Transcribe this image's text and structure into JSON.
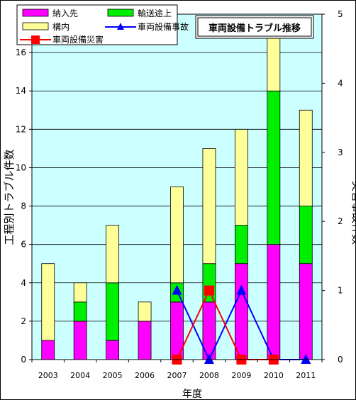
{
  "chart_data": {
    "type": "bar",
    "title": "車両設備トラブル推移",
    "xlabel": "年度",
    "ylabel": "工程別トラブル件数",
    "y2label": "災害事故件数",
    "ylim": [
      0,
      18
    ],
    "y2lim": [
      0,
      5
    ],
    "yticks": [
      0,
      2,
      4,
      6,
      8,
      10,
      12,
      14,
      16
    ],
    "y2ticks": [
      0,
      1,
      2,
      3,
      4,
      5
    ],
    "categories": [
      "2003",
      "2004",
      "2005",
      "2006",
      "2007",
      "2008",
      "2009",
      "2010",
      "2011"
    ],
    "stacked": true,
    "series": [
      {
        "name": "納入先",
        "type": "bar",
        "axis": "left",
        "color": "#ff00ff",
        "values": [
          1,
          2,
          1,
          2,
          3,
          3,
          5,
          6,
          5
        ]
      },
      {
        "name": "輸送途上",
        "type": "bar",
        "axis": "left",
        "color": "#00ee00",
        "values": [
          0,
          1,
          3,
          0,
          1,
          2,
          2,
          8,
          3
        ]
      },
      {
        "name": "構内",
        "type": "bar",
        "axis": "left",
        "color": "#ffff99",
        "values": [
          4,
          1,
          3,
          1,
          5,
          6,
          5,
          3,
          5
        ]
      },
      {
        "name": "車両設備事故",
        "type": "line",
        "axis": "right",
        "color": "#0000ff",
        "marker": "triangle",
        "x": [
          "2007",
          "2008",
          "2009",
          "2010",
          "2011"
        ],
        "values": [
          1,
          0,
          1,
          0,
          0
        ]
      },
      {
        "name": "車両設備災害",
        "type": "line",
        "axis": "right",
        "color": "#ff0000",
        "marker": "square",
        "x": [
          "2007",
          "2008",
          "2009",
          "2010"
        ],
        "values": [
          0,
          1,
          0,
          0
        ]
      }
    ],
    "legend_position": "top-left",
    "grid": true,
    "plot_background": "#ccffff"
  }
}
